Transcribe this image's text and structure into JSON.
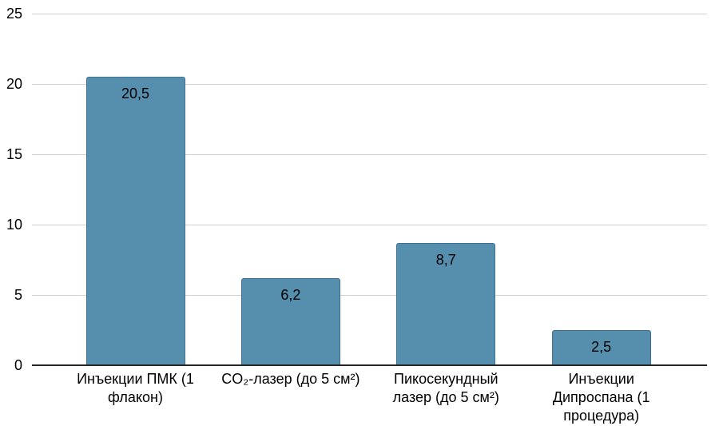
{
  "chart_data": {
    "type": "bar",
    "title": "",
    "xlabel": "",
    "ylabel": "",
    "categories": [
      "Инъекции ПМК (1 флакон)",
      "CO₂-лазер (до 5 см²)",
      "Пикосекундный лазер (до 5 см²)",
      "Инъекции Дипроспана (1 процедура)"
    ],
    "category_lines": [
      [
        "Инъекции ПМК (1",
        "флакон)"
      ],
      [
        "CO₂-лазер (до 5 см²)"
      ],
      [
        "Пикосекундный",
        "лазер (до 5 см²)"
      ],
      [
        "Инъекции",
        "Дипроспана (1",
        "процедура)"
      ]
    ],
    "values": [
      20.5,
      6.2,
      8.7,
      2.5
    ],
    "value_labels": [
      "20,5",
      "6,2",
      "8,7",
      "2,5"
    ],
    "ylim": [
      0,
      25
    ],
    "yticks": [
      0,
      5,
      10,
      15,
      20,
      25
    ],
    "grid": true,
    "legend": false,
    "colors": {
      "bar_fill": "#568FAD",
      "bar_border": "#3E7191",
      "gridline": "#D2D2D2",
      "axis": "#262626",
      "text": "#000000",
      "background": "#FFFFFF"
    }
  }
}
